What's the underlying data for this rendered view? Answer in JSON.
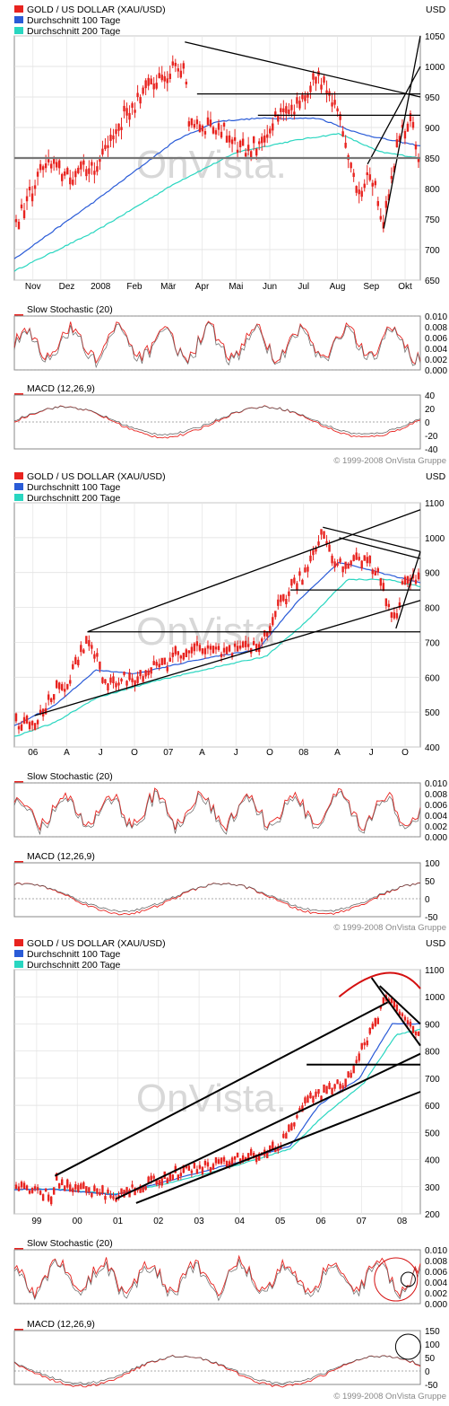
{
  "panels": [
    {
      "legend": [
        {
          "label": "GOLD / US DOLLAR (XAU/USD)",
          "color": "#e8231f"
        },
        {
          "label": "Durchschnitt 100 Tage",
          "color": "#2a5bd7"
        },
        {
          "label": "Durchschnitt 200 Tage",
          "color": "#29d6c0"
        }
      ],
      "currency": "USD",
      "price_axis": {
        "ticks": [
          "1050",
          "1000",
          "950",
          "900",
          "850",
          "800",
          "750",
          "700",
          "650"
        ],
        "min": 650,
        "max": 1050
      },
      "time_labels": [
        "Nov",
        "Dez",
        "2008",
        "Feb",
        "Mär",
        "Apr",
        "Mai",
        "Jun",
        "Jul",
        "Aug",
        "Sep",
        "Okt"
      ],
      "stoch_label": "Slow Stochastic (20)",
      "stoch_ticks": [
        "0.010",
        "0.008",
        "0.006",
        "0.004",
        "0.002",
        "0.000"
      ],
      "macd_label": "MACD (12,26,9)",
      "macd_ticks": [
        "40",
        "20",
        "0",
        "-20",
        "-40"
      ],
      "copyright": "© 1999-2008 OnVista Gruppe",
      "watermark": "OnVista.",
      "chart_data": {
        "type": "line",
        "title": "GOLD / US DOLLAR (XAU/USD)",
        "x": [
          "Nov",
          "Dez",
          "2008",
          "Feb",
          "Mär",
          "Apr",
          "Mai",
          "Jun",
          "Jul",
          "Aug",
          "Sep",
          "Okt"
        ],
        "series": [
          {
            "name": "GOLD / US DOLLAR (XAU/USD)",
            "values": [
              800,
              810,
              880,
              930,
              1000,
              900,
              880,
              920,
              980,
              850,
              780,
              880
            ]
          },
          {
            "name": "Durchschnitt 100 Tage",
            "values": [
              720,
              760,
              810,
              860,
              900,
              920,
              905,
              915,
              915,
              900,
              870,
              860
            ]
          },
          {
            "name": "Durchschnitt 200 Tage",
            "values": [
              690,
              720,
              755,
              790,
              830,
              855,
              870,
              880,
              895,
              890,
              860,
              855
            ]
          }
        ],
        "ylim": [
          650,
          1050
        ]
      }
    },
    {
      "legend": [
        {
          "label": "GOLD / US DOLLAR (XAU/USD)",
          "color": "#e8231f"
        },
        {
          "label": "Durchschnitt 100 Tage",
          "color": "#2a5bd7"
        },
        {
          "label": "Durchschnitt 200 Tage",
          "color": "#29d6c0"
        }
      ],
      "currency": "USD",
      "price_axis": {
        "ticks": [
          "1100",
          "1000",
          "900",
          "800",
          "700",
          "600",
          "500",
          "400"
        ],
        "min": 400,
        "max": 1100
      },
      "time_labels": [
        "06",
        "A",
        "J",
        "O",
        "07",
        "A",
        "J",
        "O",
        "08",
        "A",
        "J",
        "O"
      ],
      "stoch_label": "Slow Stochastic (20)",
      "stoch_ticks": [
        "0.010",
        "0.008",
        "0.006",
        "0.004",
        "0.002",
        "0.000"
      ],
      "macd_label": "MACD (12,26,9)",
      "macd_ticks": [
        "100",
        "50",
        "0",
        "-50"
      ],
      "copyright": "© 1999-2008 OnVista Gruppe",
      "watermark": "OnVista.",
      "chart_data": {
        "type": "line",
        "title": "GOLD / US DOLLAR (XAU/USD)",
        "x": [
          "06",
          "A",
          "J",
          "O",
          "07",
          "A",
          "J",
          "O",
          "08",
          "A",
          "J",
          "O"
        ],
        "series": [
          {
            "name": "GOLD / US DOLLAR (XAU/USD)",
            "values": [
              470,
              580,
              620,
              590,
              640,
              680,
              670,
              750,
              900,
              920,
              930,
              880
            ]
          },
          {
            "name": "Durchschnitt 100 Tage",
            "values": [
              460,
              540,
              600,
              610,
              630,
              660,
              670,
              700,
              820,
              900,
              910,
              880
            ]
          },
          {
            "name": "Durchschnitt 200 Tage",
            "values": [
              440,
              500,
              560,
              590,
              610,
              640,
              660,
              680,
              760,
              850,
              890,
              870
            ]
          }
        ],
        "ylim": [
          400,
          1100
        ]
      }
    },
    {
      "legend": [
        {
          "label": "GOLD / US DOLLAR (XAU/USD)",
          "color": "#e8231f"
        },
        {
          "label": "Durchschnitt 100 Tage",
          "color": "#2a5bd7"
        },
        {
          "label": "Durchschnitt 200 Tage",
          "color": "#29d6c0"
        }
      ],
      "currency": "USD",
      "price_axis": {
        "ticks": [
          "1100",
          "1000",
          "900",
          "800",
          "700",
          "600",
          "500",
          "400",
          "300",
          "200"
        ],
        "min": 200,
        "max": 1100
      },
      "time_labels": [
        "99",
        "00",
        "01",
        "02",
        "03",
        "04",
        "05",
        "06",
        "07",
        "08"
      ],
      "stoch_label": "Slow Stochastic (20)",
      "stoch_ticks": [
        "0.010",
        "0.008",
        "0.006",
        "0.004",
        "0.002",
        "0.000"
      ],
      "macd_label": "MACD (12,26,9)",
      "macd_ticks": [
        "150",
        "100",
        "50",
        "0",
        "-50"
      ],
      "copyright": "© 1999-2008 OnVista Gruppe",
      "watermark": "OnVista.",
      "chart_data": {
        "type": "line",
        "title": "GOLD / US DOLLAR (XAU/USD)",
        "x": [
          "99",
          "00",
          "01",
          "02",
          "03",
          "04",
          "05",
          "06",
          "07",
          "08"
        ],
        "series": [
          {
            "name": "GOLD / US DOLLAR (XAU/USD)",
            "values": [
              285,
              280,
              270,
              310,
              350,
              400,
              440,
              620,
              700,
              930
            ]
          },
          {
            "name": "Durchschnitt 100 Tage",
            "values": [
              285,
              282,
              270,
              300,
              340,
              395,
              435,
              580,
              680,
              900
            ]
          },
          {
            "name": "Durchschnitt 200 Tage",
            "values": [
              285,
              283,
              272,
              295,
              335,
              390,
              430,
              560,
              670,
              880
            ]
          }
        ],
        "ylim": [
          200,
          1100
        ]
      }
    }
  ]
}
